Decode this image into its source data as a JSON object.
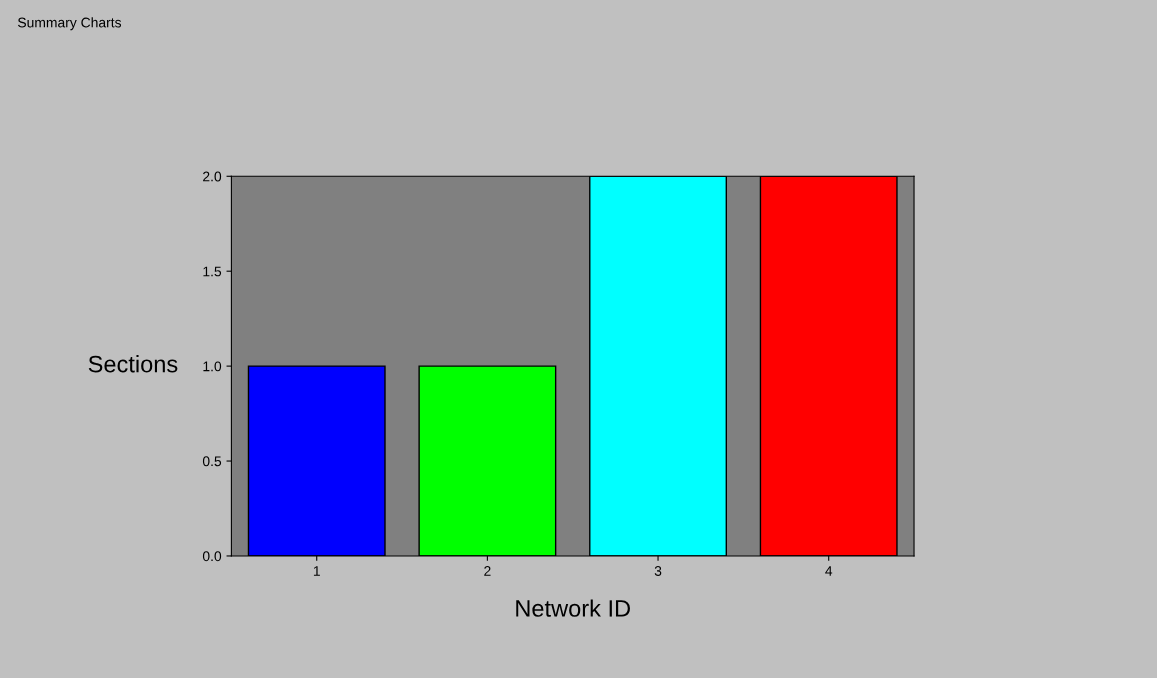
{
  "chart_data": {
    "type": "bar",
    "title": "Summary Charts",
    "categories": [
      "1",
      "2",
      "3",
      "4"
    ],
    "values": [
      1.0,
      1.0,
      2.0,
      2.0
    ],
    "colors": [
      "#0000ff",
      "#00ff00",
      "#00ffff",
      "#ff0000"
    ],
    "xlabel": "Network ID",
    "ylabel": "Sections",
    "ylim": [
      0,
      2.0
    ],
    "yticks": [
      {
        "value": 0,
        "label": "0.0"
      },
      {
        "value": 0.5,
        "label": "0.5"
      },
      {
        "value": 1.0,
        "label": "1.0"
      },
      {
        "value": 1.5,
        "label": "1.5"
      },
      {
        "value": 2.0,
        "label": "2.0"
      }
    ],
    "grid": false,
    "legend": false
  }
}
